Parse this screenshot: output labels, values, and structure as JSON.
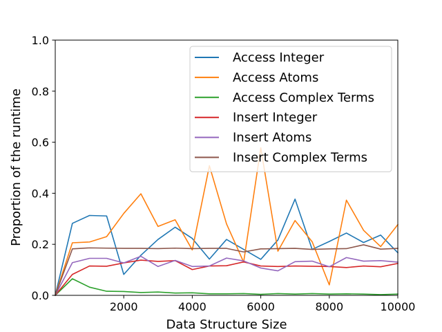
{
  "chart_data": {
    "type": "line",
    "xlabel": "Data Structure Size",
    "ylabel": "Proportion of the runtime",
    "xlim": [
      0,
      10000
    ],
    "ylim": [
      0,
      1.0
    ],
    "xticks": [
      2000,
      4000,
      6000,
      8000,
      10000
    ],
    "xtick_labels": [
      "2000",
      "4000",
      "6000",
      "8000",
      "10000"
    ],
    "yticks": [
      0.0,
      0.2,
      0.4,
      0.6,
      0.8,
      1.0
    ],
    "ytick_labels": [
      "0.0",
      "0.2",
      "0.4",
      "0.6",
      "0.8",
      "1.0"
    ],
    "grid": false,
    "legend_position": "top-right",
    "x": [
      0,
      500,
      1000,
      1500,
      2000,
      2500,
      3000,
      3500,
      4000,
      4500,
      5000,
      5500,
      6000,
      6500,
      7000,
      7500,
      8000,
      8500,
      9000,
      9500,
      10000
    ],
    "series": [
      {
        "name": "Access Integer",
        "color": "#1f77b4",
        "values": [
          0.0,
          0.282,
          0.313,
          0.311,
          0.082,
          0.157,
          0.219,
          0.267,
          0.223,
          0.142,
          0.219,
          0.18,
          0.141,
          0.217,
          0.377,
          0.18,
          0.211,
          0.244,
          0.207,
          0.236,
          0.167
        ]
      },
      {
        "name": "Access Atoms",
        "color": "#ff7f0e",
        "values": [
          0.0,
          0.206,
          0.209,
          0.23,
          0.321,
          0.398,
          0.27,
          0.296,
          0.178,
          0.508,
          0.28,
          0.13,
          0.578,
          0.173,
          0.293,
          0.21,
          0.041,
          0.373,
          0.255,
          0.191,
          0.277
        ]
      },
      {
        "name": "Access Complex Terms",
        "color": "#2ca02c",
        "values": [
          0.0,
          0.065,
          0.032,
          0.016,
          0.015,
          0.011,
          0.013,
          0.009,
          0.01,
          0.006,
          0.006,
          0.007,
          0.004,
          0.007,
          0.005,
          0.007,
          0.005,
          0.006,
          0.005,
          0.003,
          0.005
        ]
      },
      {
        "name": "Insert Integer",
        "color": "#d62728",
        "values": [
          0.0,
          0.082,
          0.115,
          0.114,
          0.127,
          0.138,
          0.133,
          0.136,
          0.101,
          0.115,
          0.116,
          0.131,
          0.115,
          0.113,
          0.115,
          0.114,
          0.113,
          0.109,
          0.115,
          0.112,
          0.125
        ]
      },
      {
        "name": "Insert Atoms",
        "color": "#9467bd",
        "values": [
          0.0,
          0.128,
          0.145,
          0.145,
          0.127,
          0.153,
          0.113,
          0.137,
          0.113,
          0.115,
          0.146,
          0.135,
          0.107,
          0.096,
          0.132,
          0.134,
          0.112,
          0.148,
          0.134,
          0.136,
          0.13
        ]
      },
      {
        "name": "Insert Complex Terms",
        "color": "#8c564b",
        "values": [
          0.0,
          0.182,
          0.186,
          0.185,
          0.184,
          0.184,
          0.183,
          0.185,
          0.183,
          0.184,
          0.184,
          0.17,
          0.182,
          0.183,
          0.184,
          0.18,
          0.182,
          0.183,
          0.198,
          0.181,
          0.184
        ]
      }
    ]
  }
}
